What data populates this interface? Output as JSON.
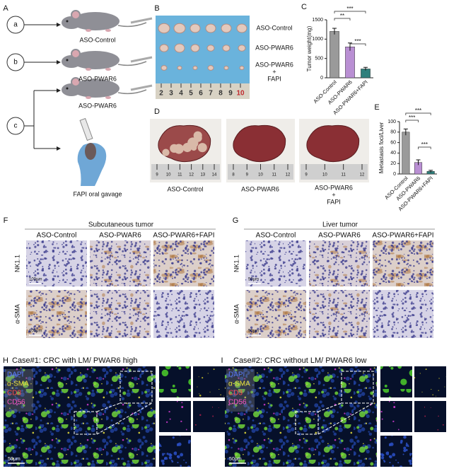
{
  "panel_labels": [
    "A",
    "B",
    "C",
    "D",
    "E",
    "F",
    "G",
    "H",
    "I"
  ],
  "panel_a": {
    "circles": [
      "a",
      "b",
      "c"
    ],
    "labels": [
      "ASO-Control",
      "ASO-PWAR6",
      "ASO-PWAR6",
      "FAPI oral gavage"
    ]
  },
  "panel_b": {
    "labels": [
      "ASO-Control",
      "ASO-PWAR6"
    ],
    "label_3": [
      "ASO-PWAR6",
      "+",
      "FAPI"
    ],
    "ruler": [
      "2",
      "3",
      "4",
      "5",
      "6",
      "7",
      "8",
      "9",
      "10"
    ]
  },
  "panel_d": {
    "labels": [
      "ASO-Control",
      "ASO-PWAR6"
    ],
    "label_3": [
      "ASO-PWAR6",
      "+",
      "FAPI"
    ],
    "rulers": [
      [
        "9",
        "10",
        "11",
        "12",
        "13",
        "14"
      ],
      [
        "8",
        "9",
        "10",
        "11",
        "12"
      ],
      [
        "9",
        "10",
        "11",
        "12"
      ]
    ]
  },
  "panel_f": {
    "title": "Subcutaneous tumor",
    "columns": [
      "ASO-Control",
      "ASO-PWAR6",
      "ASO-PWAR6+FAPI"
    ],
    "rows": [
      "NK1.1",
      "α-SMA"
    ],
    "scale_bar": "100μm"
  },
  "panel_g": {
    "title": "Liver tumor",
    "columns": [
      "ASO-Control",
      "ASO-PWAR6",
      "ASO-PWAR6+FAPI"
    ],
    "rows": [
      "NK1.1",
      "α-SMA"
    ],
    "scale_bar": "50μm"
  },
  "panel_h": {
    "title": "Case#1: CRC with LM/ PWAR6 high",
    "legend": [
      "DAPI",
      "α-SMA",
      "CD3",
      "CD56"
    ],
    "scale_bar": "50μm"
  },
  "panel_i": {
    "title": "Case#2: CRC without LM/ PWAR6 low",
    "legend": [
      "DAPI",
      "α-SMA",
      "CD3",
      "CD56"
    ],
    "scale_bar": "50μm"
  },
  "chart_data": [
    {
      "type": "bar",
      "y_label": "Tumor weight(mg)",
      "categories": [
        "ASO-Control",
        "ASO-PWAR6",
        "ASO-PWAR6+FAPI"
      ],
      "values": [
        1200,
        800,
        230
      ],
      "errors": [
        80,
        100,
        40
      ],
      "colors": [
        "#9a9a9a",
        "#b98fd3",
        "#2f7f7c"
      ],
      "ylim": [
        0,
        1500
      ],
      "yticks": [
        0,
        500,
        1000,
        1500
      ],
      "significance": [
        "**",
        "***",
        "***"
      ]
    },
    {
      "type": "bar",
      "y_label": "Metastasis foci/Liver",
      "categories": [
        "ASO-Control",
        "ASO-PWAR6",
        "ASO-PWAR6+FAPI"
      ],
      "values": [
        80,
        22,
        5
      ],
      "errors": [
        6,
        5,
        2
      ],
      "colors": [
        "#9a9a9a",
        "#b98fd3",
        "#2f7f7c"
      ],
      "ylim": [
        0,
        100
      ],
      "yticks": [
        0,
        20,
        40,
        60,
        80,
        100
      ],
      "significance": [
        "***",
        "***",
        "***"
      ]
    }
  ]
}
